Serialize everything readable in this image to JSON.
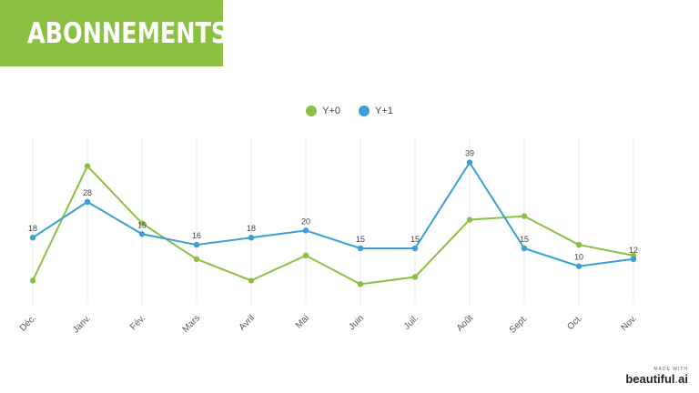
{
  "header": {
    "title": "ABONNEMENTS"
  },
  "colors": {
    "banner": "#8cc043",
    "series_y0": "#8cc043",
    "series_y1": "#3a9fd5"
  },
  "chart_data": {
    "type": "line",
    "categories": [
      "Déc.",
      "Janv.",
      "Fév.",
      "Mars",
      "Avril",
      "Mai",
      "Juin",
      "Juil.",
      "Août",
      "Sept.",
      "Oct.",
      "Nov."
    ],
    "series": [
      {
        "name": "Y+0",
        "color": "#8cc043",
        "values": [
          6,
          38,
          22,
          12,
          6,
          13,
          5,
          7,
          23,
          24,
          16,
          13
        ]
      },
      {
        "name": "Y+1",
        "color": "#3a9fd5",
        "values": [
          18,
          28,
          19,
          16,
          18,
          20,
          15,
          15,
          39,
          15,
          10,
          12
        ],
        "data_labels": [
          "18",
          "28",
          "19",
          "16",
          "18",
          "20",
          "15",
          "15",
          "39",
          "15",
          "10",
          "12"
        ]
      }
    ],
    "ylim": [
      0,
      45
    ],
    "grid": "vertical",
    "legend": "top-center"
  },
  "branding": {
    "made_with": "MADE WITH",
    "name_main": "beautiful",
    "name_dot": ".",
    "name_suffix": "ai"
  }
}
